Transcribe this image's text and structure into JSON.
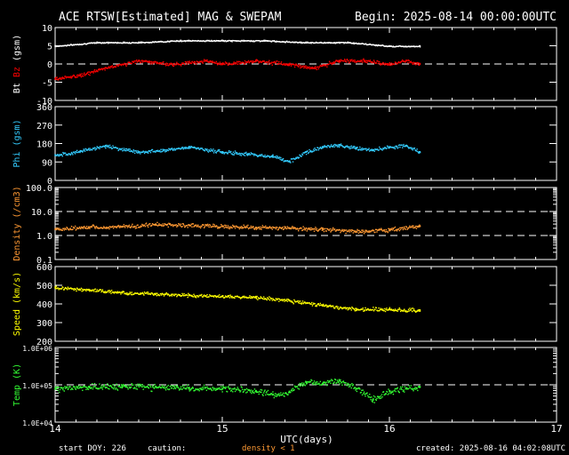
{
  "header": {
    "title": "ACE RTSW[Estimated] MAG & SWEPAM",
    "begin": "Begin: 2025-08-14 00:00:00UTC"
  },
  "footer": {
    "start_doy": "start DOY: 226",
    "caution": "caution:",
    "density_note": "density < 1",
    "created": "created: 2025-08-16 04:02:08UTC",
    "xlabel": "UTC(days)"
  },
  "colors": {
    "background": "#000000",
    "bt": "#ffffff",
    "bz": "#ff0000",
    "phi": "#33ccff",
    "density": "#ff9933",
    "speed": "#ffff00",
    "temp": "#33ff33",
    "note": "#ff9933"
  },
  "chart_data": [
    {
      "type": "scatter",
      "panel": "mag",
      "ylabel_parts": [
        "Bt",
        "Bz",
        "(gsm)"
      ],
      "ylim": [
        -10,
        10
      ],
      "yticks": [
        -10,
        -5,
        0,
        5,
        10
      ],
      "xlim": [
        14,
        17
      ],
      "data_end": 16.18,
      "reference_lines": [
        0
      ],
      "series": [
        {
          "name": "Bt",
          "color": "#ffffff",
          "x": [
            14.0,
            14.25,
            14.5,
            14.75,
            15.0,
            15.25,
            15.5,
            15.75,
            16.0,
            16.18
          ],
          "y": [
            5,
            6,
            6,
            6.5,
            6.5,
            6.5,
            6,
            6,
            5,
            5
          ]
        },
        {
          "name": "Bz",
          "color": "#ff0000",
          "x": [
            14.0,
            14.15,
            14.3,
            14.5,
            14.7,
            14.9,
            15.0,
            15.2,
            15.4,
            15.55,
            15.7,
            15.85,
            16.0,
            16.1,
            16.18
          ],
          "y": [
            -4,
            -3,
            -1,
            1,
            0,
            1,
            0,
            1,
            0,
            -1,
            1,
            1,
            0,
            1,
            0
          ]
        }
      ]
    },
    {
      "type": "scatter",
      "panel": "phi",
      "ylabel": "Phi (gsm)",
      "ylim": [
        0,
        360
      ],
      "yticks": [
        0,
        90,
        180,
        270,
        360
      ],
      "xlim": [
        14,
        17
      ],
      "data_end": 16.18,
      "series": [
        {
          "name": "Phi",
          "color": "#33ccff",
          "x": [
            14.0,
            14.15,
            14.3,
            14.5,
            14.65,
            14.8,
            15.0,
            15.15,
            15.3,
            15.4,
            15.5,
            15.6,
            15.7,
            15.8,
            15.9,
            16.0,
            16.1,
            16.18
          ],
          "y": [
            125,
            145,
            170,
            140,
            150,
            165,
            140,
            130,
            120,
            95,
            140,
            165,
            175,
            160,
            150,
            165,
            170,
            140
          ]
        }
      ]
    },
    {
      "type": "scatter",
      "panel": "density",
      "ylabel": "Density (/cm3)",
      "yscale": "log",
      "ylim": [
        0.1,
        100
      ],
      "yticks": [
        0.1,
        1.0,
        10.0,
        100.0
      ],
      "xlim": [
        14,
        17
      ],
      "data_end": 16.18,
      "reference_lines": [
        1.0,
        10.0
      ],
      "series": [
        {
          "name": "Density",
          "color": "#ff9933",
          "x": [
            14.0,
            14.2,
            14.4,
            14.6,
            14.8,
            15.0,
            15.2,
            15.4,
            15.6,
            15.8,
            16.0,
            16.18
          ],
          "y": [
            1.9,
            2.3,
            2.4,
            3.0,
            2.8,
            2.5,
            2.2,
            2.1,
            1.9,
            1.5,
            1.8,
            2.5
          ]
        }
      ]
    },
    {
      "type": "scatter",
      "panel": "speed",
      "ylabel": "Speed (km/s)",
      "ylim": [
        200,
        600
      ],
      "yticks": [
        200,
        300,
        400,
        500,
        600
      ],
      "xlim": [
        14,
        17
      ],
      "data_end": 16.18,
      "series": [
        {
          "name": "Speed",
          "color": "#ffff00",
          "x": [
            14.0,
            14.2,
            14.4,
            14.6,
            14.8,
            15.0,
            15.2,
            15.4,
            15.6,
            15.8,
            16.0,
            16.18
          ],
          "y": [
            490,
            478,
            462,
            455,
            448,
            442,
            437,
            420,
            395,
            375,
            372,
            368
          ]
        }
      ]
    },
    {
      "type": "scatter",
      "panel": "temp",
      "ylabel": "Temp (K)",
      "yscale": "log",
      "ylim": [
        10000,
        1000000
      ],
      "ytick_labels": [
        "1.0E+04",
        "1.0E+05",
        "1.0E+06"
      ],
      "yticks": [
        10000,
        100000,
        1000000
      ],
      "xlim": [
        14,
        17
      ],
      "data_end": 16.18,
      "reference_lines": [
        100000
      ],
      "series": [
        {
          "name": "Temp",
          "color": "#33ff33",
          "x": [
            14.0,
            14.2,
            14.4,
            14.6,
            14.8,
            15.0,
            15.2,
            15.3,
            15.4,
            15.5,
            15.6,
            15.7,
            15.8,
            15.9,
            16.0,
            16.1,
            16.18
          ],
          "y": [
            80000,
            90000,
            95000,
            90000,
            85000,
            80000,
            70000,
            55000,
            65000,
            120000,
            110000,
            130000,
            80000,
            40000,
            70000,
            80000,
            90000
          ]
        }
      ]
    }
  ],
  "xaxis": {
    "ticks": [
      14,
      15,
      16,
      17
    ],
    "tick_labels": [
      "14",
      "15",
      "16",
      "17"
    ]
  }
}
